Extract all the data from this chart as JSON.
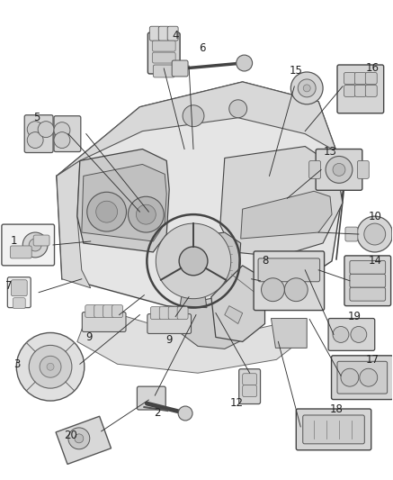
{
  "background_color": "#ffffff",
  "figure_width": 4.37,
  "figure_height": 5.33,
  "dpi": 100,
  "label_fontsize": 8.5,
  "label_color": "#222222",
  "line_color": "#333333",
  "line_width": 0.7,
  "component_edge": "#555555",
  "component_face": "#f2f2f2",
  "dash_face": "#e8e8e8",
  "dash_edge": "#444444"
}
